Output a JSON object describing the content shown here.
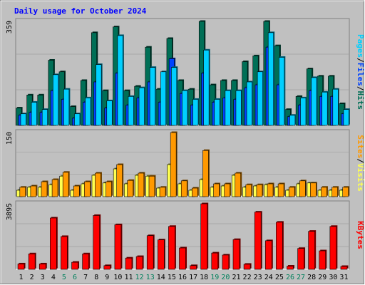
{
  "chart_data": [
    {
      "type": "bar",
      "title": "Daily usage for October 2024",
      "max_label": "359",
      "ylim": [
        0,
        359
      ],
      "categories": [
        "1",
        "2",
        "3",
        "4",
        "5",
        "6",
        "7",
        "8",
        "9",
        "10",
        "11",
        "12",
        "13",
        "14",
        "15",
        "16",
        "17",
        "18",
        "19",
        "20",
        "21",
        "22",
        "23",
        "24",
        "25",
        "26",
        "27",
        "28",
        "29",
        "30",
        "31"
      ],
      "weekend_days": [
        "5",
        "6",
        "12",
        "13",
        "19",
        "20",
        "26",
        "27"
      ],
      "series": [
        {
          "name": "Hits",
          "color": "#006f56",
          "values": [
            60,
            105,
            105,
            225,
            185,
            65,
            155,
            320,
            120,
            340,
            120,
            135,
            270,
            125,
            300,
            155,
            125,
            359,
            140,
            155,
            155,
            220,
            240,
            359,
            275,
            55,
            100,
            195,
            170,
            170,
            75
          ]
        },
        {
          "name": "Files",
          "color": "#0043ff",
          "values": [
            35,
            45,
            45,
            120,
            90,
            25,
            80,
            150,
            60,
            180,
            70,
            95,
            150,
            80,
            230,
            110,
            70,
            180,
            80,
            95,
            90,
            130,
            140,
            270,
            140,
            30,
            70,
            120,
            100,
            100,
            40
          ]
        },
        {
          "name": "Pages",
          "color": "#00cfff",
          "values": [
            40,
            80,
            55,
            175,
            125,
            40,
            95,
            210,
            85,
            310,
            100,
            130,
            200,
            185,
            200,
            120,
            90,
            260,
            90,
            120,
            120,
            150,
            185,
            320,
            235,
            35,
            95,
            165,
            115,
            125,
            55
          ]
        }
      ],
      "side_labels": [
        "Pages",
        "/",
        "Files",
        "/",
        "Hits"
      ]
    },
    {
      "type": "bar",
      "max_label": "150",
      "ylim": [
        0,
        150
      ],
      "categories": [
        "1",
        "2",
        "3",
        "4",
        "5",
        "6",
        "7",
        "8",
        "9",
        "10",
        "11",
        "12",
        "13",
        "14",
        "15",
        "16",
        "17",
        "18",
        "19",
        "20",
        "21",
        "22",
        "23",
        "24",
        "25",
        "26",
        "27",
        "28",
        "29",
        "30",
        "31"
      ],
      "series": [
        {
          "name": "Visits",
          "color": "#ffff50",
          "values": [
            15,
            22,
            22,
            28,
            48,
            15,
            30,
            50,
            32,
            65,
            30,
            50,
            48,
            20,
            75,
            30,
            15,
            40,
            22,
            25,
            50,
            22,
            25,
            28,
            22,
            15,
            30,
            32,
            15,
            15,
            15
          ]
        },
        {
          "name": "Sites",
          "color": "#ff9900",
          "values": [
            22,
            25,
            35,
            40,
            57,
            25,
            35,
            55,
            35,
            75,
            38,
            55,
            48,
            22,
            150,
            37,
            20,
            108,
            30,
            30,
            55,
            28,
            28,
            30,
            30,
            22,
            37,
            32,
            22,
            22,
            22
          ]
        }
      ],
      "side_labels": [
        "Sites",
        "/",
        "Visits"
      ]
    },
    {
      "type": "bar",
      "max_label": "3895",
      "ylim": [
        0,
        3895
      ],
      "categories": [
        "1",
        "2",
        "3",
        "4",
        "5",
        "6",
        "7",
        "8",
        "9",
        "10",
        "11",
        "12",
        "13",
        "14",
        "15",
        "16",
        "17",
        "18",
        "19",
        "20",
        "21",
        "22",
        "23",
        "24",
        "25",
        "26",
        "27",
        "28",
        "29",
        "30",
        "31"
      ],
      "series": [
        {
          "name": "KBytes",
          "color": "#ff0000",
          "values": [
            320,
            920,
            320,
            3050,
            1950,
            420,
            920,
            3200,
            220,
            2650,
            670,
            760,
            2000,
            1750,
            2550,
            1270,
            220,
            3895,
            970,
            850,
            1770,
            300,
            3400,
            1700,
            2800,
            190,
            1240,
            2260,
            1100,
            2550,
            170
          ]
        }
      ],
      "side_labels": [
        "KBytes"
      ]
    }
  ]
}
